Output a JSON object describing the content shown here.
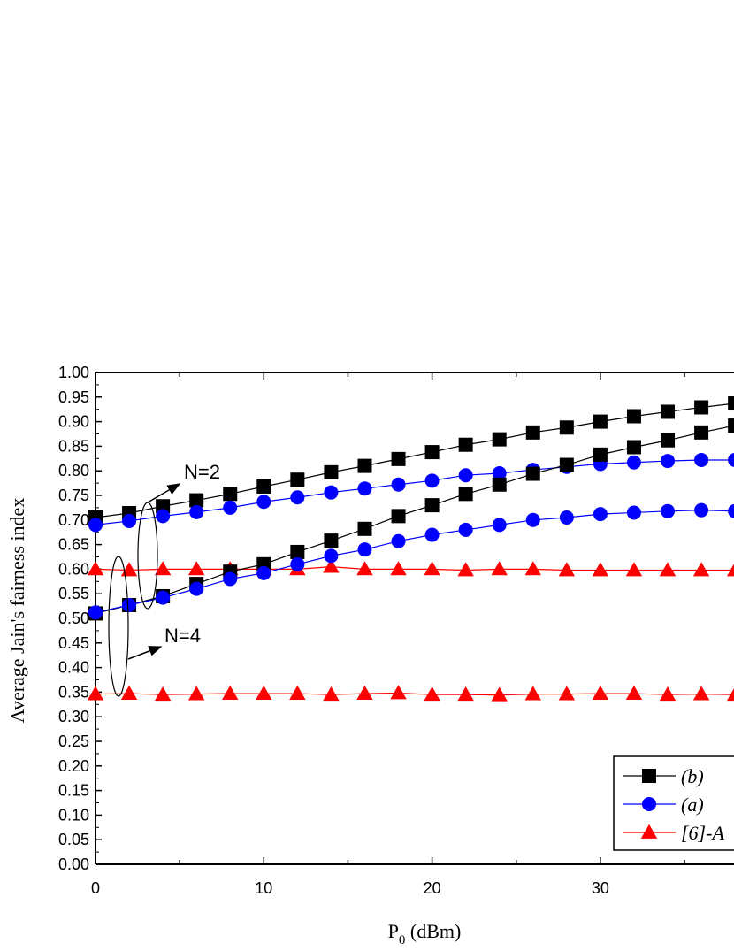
{
  "chart_data": {
    "type": "line",
    "xlabel": "P",
    "xlabel_sub": "0",
    "xlabel_unit": " (dBm)",
    "ylabel": "Average Jain's fairness index",
    "xlim": [
      0,
      38
    ],
    "ylim": [
      0,
      1
    ],
    "x_ticks": [
      0,
      10,
      20,
      30
    ],
    "y_ticks": [
      "0.00",
      "0.05",
      "0.10",
      "0.15",
      "0.20",
      "0.25",
      "0.30",
      "0.35",
      "0.40",
      "0.45",
      "0.50",
      "0.55",
      "0.60",
      "0.65",
      "0.70",
      "0.75",
      "0.80",
      "0.85",
      "0.90",
      "0.95",
      "1.00"
    ],
    "x": [
      0,
      2,
      4,
      6,
      8,
      10,
      12,
      14,
      16,
      18,
      20,
      22,
      24,
      26,
      28,
      30,
      32,
      34,
      36,
      38
    ],
    "series": [
      {
        "name": "(b)",
        "group": "N=2",
        "color": "#000000",
        "marker": "square",
        "values": [
          0.705,
          0.714,
          0.728,
          0.74,
          0.753,
          0.768,
          0.782,
          0.797,
          0.81,
          0.824,
          0.838,
          0.853,
          0.864,
          0.878,
          0.888,
          0.9,
          0.911,
          0.92,
          0.929,
          0.937
        ]
      },
      {
        "name": "(a)",
        "group": "N=2",
        "color": "#0000ff",
        "marker": "circle",
        "values": [
          0.69,
          0.698,
          0.708,
          0.716,
          0.725,
          0.737,
          0.746,
          0.756,
          0.764,
          0.772,
          0.78,
          0.791,
          0.795,
          0.802,
          0.808,
          0.814,
          0.817,
          0.82,
          0.822,
          0.822
        ]
      },
      {
        "name": "[6]-A",
        "group": "N=2",
        "color": "#ff0000",
        "marker": "triangle",
        "values": [
          0.6,
          0.598,
          0.6,
          0.6,
          0.6,
          0.6,
          0.6,
          0.605,
          0.6,
          0.6,
          0.6,
          0.598,
          0.6,
          0.6,
          0.598,
          0.598,
          0.598,
          0.598,
          0.598,
          0.598
        ]
      },
      {
        "name": "(b)",
        "group": "N=4",
        "color": "#000000",
        "marker": "square",
        "values": [
          0.51,
          0.527,
          0.545,
          0.57,
          0.595,
          0.61,
          0.635,
          0.658,
          0.682,
          0.708,
          0.73,
          0.753,
          0.772,
          0.794,
          0.812,
          0.833,
          0.848,
          0.862,
          0.878,
          0.892
        ]
      },
      {
        "name": "(a)",
        "group": "N=4",
        "color": "#0000ff",
        "marker": "circle",
        "values": [
          0.512,
          0.527,
          0.542,
          0.56,
          0.58,
          0.592,
          0.61,
          0.627,
          0.64,
          0.657,
          0.67,
          0.68,
          0.69,
          0.7,
          0.705,
          0.712,
          0.715,
          0.718,
          0.72,
          0.718
        ]
      },
      {
        "name": "[6]-A",
        "group": "N=4",
        "color": "#ff0000",
        "marker": "triangle",
        "values": [
          0.346,
          0.347,
          0.345,
          0.346,
          0.347,
          0.347,
          0.347,
          0.345,
          0.347,
          0.348,
          0.345,
          0.345,
          0.344,
          0.346,
          0.346,
          0.347,
          0.347,
          0.345,
          0.346,
          0.345
        ]
      }
    ],
    "annotations": [
      {
        "text": "N=2",
        "target_x": 2.5,
        "target_y": 0.73
      },
      {
        "text": "N=4",
        "target_x": 1.0,
        "target_y": 0.4
      }
    ],
    "legend": {
      "placement": "bottom-right",
      "entries": [
        {
          "label": "(b)",
          "color": "#000000",
          "marker": "square"
        },
        {
          "label": "(a)",
          "color": "#0000ff",
          "marker": "circle"
        },
        {
          "label": "[6]-A",
          "color": "#ff0000",
          "marker": "triangle"
        }
      ]
    }
  }
}
